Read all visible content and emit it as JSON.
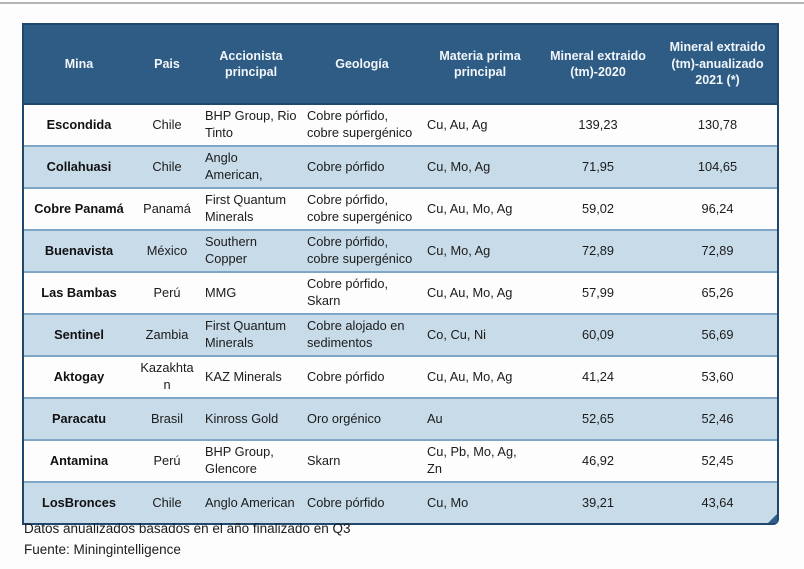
{
  "chart_data": {
    "type": "table",
    "title": "",
    "columns": [
      "Mina",
      "Pais",
      "Accionista principal",
      "Geología",
      "Materia prima principal",
      "Mineral extraido (tm)-2020",
      "Mineral extraido (tm)-anualizado 2021 (*)"
    ],
    "rows": [
      {
        "mina": "Escondida",
        "pais": "Chile",
        "accionista": "BHP Group, Rio Tinto",
        "geologia": "Cobre pórfido, cobre supergénico",
        "materia": "Cu, Au, Ag",
        "tm2020": "139,23",
        "tm2021": "130,78"
      },
      {
        "mina": "Collahuasi",
        "pais": "Chile",
        "accionista": "Anglo American,",
        "geologia": "Cobre pórfido",
        "materia": "Cu, Mo, Ag",
        "tm2020": "71,95",
        "tm2021": "104,65"
      },
      {
        "mina": "Cobre Panamá",
        "pais": "Panamá",
        "accionista": "First Quantum Minerals",
        "geologia": "Cobre pórfido, cobre supergénico",
        "materia": "Cu, Au, Mo, Ag",
        "tm2020": "59,02",
        "tm2021": "96,24"
      },
      {
        "mina": "Buenavista",
        "pais": "México",
        "accionista": "Southern Copper",
        "geologia": "Cobre pórfido, cobre supergénico",
        "materia": "Cu, Mo, Ag",
        "tm2020": "72,89",
        "tm2021": "72,89"
      },
      {
        "mina": "Las Bambas",
        "pais": "Perú",
        "accionista": "MMG",
        "geologia": "Cobre pórfido, Skarn",
        "materia": "Cu, Au, Mo, Ag",
        "tm2020": "57,99",
        "tm2021": "65,26"
      },
      {
        "mina": "Sentinel",
        "pais": "Zambia",
        "accionista": "First Quantum Minerals",
        "geologia": "Cobre alojado en sedimentos",
        "materia": "Co, Cu, Ni",
        "tm2020": "60,09",
        "tm2021": "56,69"
      },
      {
        "mina": "Aktogay",
        "pais": "Kazakhtan",
        "accionista": "KAZ Minerals",
        "geologia": "Cobre pórfido",
        "materia": "Cu, Au, Mo, Ag",
        "tm2020": "41,24",
        "tm2021": "53,60"
      },
      {
        "mina": "Paracatu",
        "pais": "Brasil",
        "accionista": "Kinross Gold",
        "geologia": "Oro orgénico",
        "materia": "Au",
        "tm2020": "52,65",
        "tm2021": "52,46"
      },
      {
        "mina": "Antamina",
        "pais": "Perú",
        "accionista": "BHP Group, Glencore",
        "geologia": "Skarn",
        "materia": "Cu, Pb, Mo, Ag, Zn",
        "tm2020": "46,92",
        "tm2021": "52,45"
      },
      {
        "mina": "LosBronces",
        "pais": "Chile",
        "accionista": "Anglo American",
        "geologia": "Cobre pórfido",
        "materia": "Cu, Mo",
        "tm2020": "39,21",
        "tm2021": "43,64"
      }
    ]
  },
  "footnotes": {
    "line1": "Datos anualizados basados en el año finalizado en Q3",
    "line2": "Fuente: Miningintelligence"
  },
  "colors": {
    "header_bg": "#2e5c84",
    "header_text": "#f2f6fa",
    "row_alt": "#c8dbe9",
    "row_white": "#fdfdfe",
    "row_border": "#7fa6c6",
    "outer_border": "#20486e",
    "grip": "#2d5f8a"
  }
}
